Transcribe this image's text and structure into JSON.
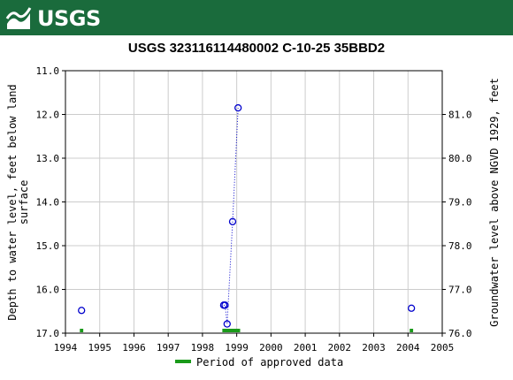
{
  "brand": {
    "logo_text": "USGS",
    "color": "#1a6b3c"
  },
  "chart_data": {
    "type": "scatter",
    "title": "USGS 323116114480002 C-10-25 35BBD2",
    "ylabel_left": "Depth to water level, feet below land surface",
    "ylabel_right": "Groundwater level above NGVD 1929, feet",
    "xlim": [
      1994,
      2005
    ],
    "ylim_left": [
      17.0,
      11.0
    ],
    "ylim_right": [
      76.0,
      82.0
    ],
    "x_ticks": [
      "1994",
      "1995",
      "1996",
      "1997",
      "1998",
      "1999",
      "2000",
      "2001",
      "2002",
      "2003",
      "2004",
      "2005"
    ],
    "y_left_ticks": [
      "11.0",
      "12.0",
      "13.0",
      "14.0",
      "15.0",
      "16.0",
      "17.0"
    ],
    "y_right_ticks": [
      "76.0",
      "77.0",
      "78.0",
      "79.0",
      "80.0",
      "81.0"
    ],
    "grid": true,
    "series": [
      {
        "marker": "open-circle",
        "color": "#0000cc",
        "points": [
          {
            "x": 1994.47,
            "y": 16.48
          },
          {
            "x": 1998.62,
            "y": 16.36
          },
          {
            "x": 1998.66,
            "y": 16.36
          },
          {
            "x": 1998.72,
            "y": 16.79
          },
          {
            "x": 1998.88,
            "y": 14.45
          },
          {
            "x": 1999.04,
            "y": 11.85
          },
          {
            "x": 2004.1,
            "y": 16.43
          }
        ],
        "connected_segment": [
          1,
          5
        ]
      }
    ],
    "approved_periods": [
      {
        "start": 1994.42,
        "end": 1994.52
      },
      {
        "start": 1998.58,
        "end": 1999.1
      },
      {
        "start": 2004.05,
        "end": 2004.15
      }
    ],
    "legend": {
      "label": "Period of approved data",
      "color": "#1a9a1a",
      "placement": "bottom"
    }
  }
}
